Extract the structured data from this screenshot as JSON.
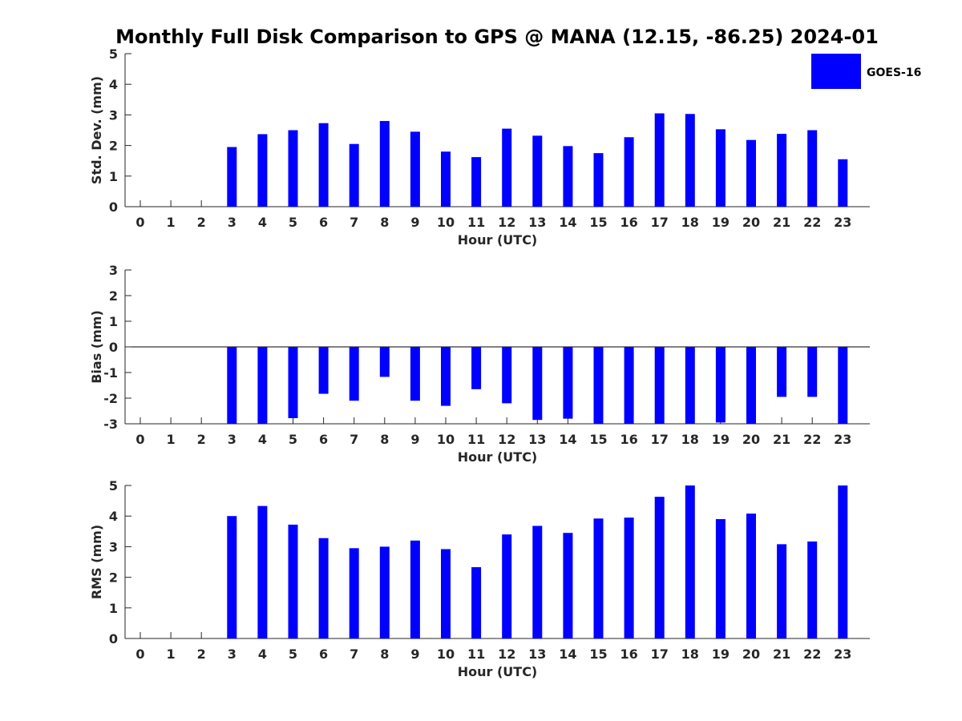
{
  "title": "Monthly Full Disk Comparison to GPS @ MANA (12.15, -86.25) 2024-01",
  "legend": {
    "label": "GOES-16",
    "color": "#0000ff",
    "placement": "top-right"
  },
  "colors": {
    "bar": "#0000ff",
    "axis": "#262626"
  },
  "chart_data": [
    {
      "type": "bar",
      "ylabel": "Std. Dev. (mm)",
      "xlabel": "Hour (UTC)",
      "categories": [
        "0",
        "1",
        "2",
        "3",
        "4",
        "5",
        "6",
        "7",
        "8",
        "9",
        "10",
        "11",
        "12",
        "13",
        "14",
        "15",
        "16",
        "17",
        "18",
        "19",
        "20",
        "21",
        "22",
        "23"
      ],
      "ylim": [
        0,
        5
      ],
      "yticks": [
        "0",
        "1",
        "2",
        "3",
        "4",
        "5"
      ],
      "series": [
        {
          "name": "GOES-16",
          "values": [
            null,
            null,
            null,
            1.95,
            2.37,
            2.5,
            2.73,
            2.05,
            2.8,
            2.45,
            1.8,
            1.62,
            2.55,
            2.32,
            1.98,
            1.75,
            2.27,
            3.05,
            3.03,
            2.53,
            2.18,
            2.38,
            2.5,
            1.55
          ]
        }
      ]
    },
    {
      "type": "bar",
      "ylabel": "Bias (mm)",
      "xlabel": "Hour (UTC)",
      "categories": [
        "0",
        "1",
        "2",
        "3",
        "4",
        "5",
        "6",
        "7",
        "8",
        "9",
        "10",
        "11",
        "12",
        "13",
        "14",
        "15",
        "16",
        "17",
        "18",
        "19",
        "20",
        "21",
        "22",
        "23"
      ],
      "ylim": [
        -3,
        3
      ],
      "yticks": [
        "-3",
        "-2",
        "-1",
        "0",
        "1",
        "2",
        "3"
      ],
      "series": [
        {
          "name": "GOES-16",
          "values": [
            null,
            null,
            null,
            -3.0,
            -3.0,
            -2.78,
            -1.83,
            -2.1,
            -1.17,
            -2.1,
            -2.3,
            -1.65,
            -2.2,
            -2.85,
            -2.8,
            -3.0,
            -3.0,
            -3.0,
            -3.0,
            -2.95,
            -3.0,
            -1.95,
            -1.95,
            -3.0
          ]
        }
      ]
    },
    {
      "type": "bar",
      "ylabel": "RMS (mm)",
      "xlabel": "Hour (UTC)",
      "categories": [
        "0",
        "1",
        "2",
        "3",
        "4",
        "5",
        "6",
        "7",
        "8",
        "9",
        "10",
        "11",
        "12",
        "13",
        "14",
        "15",
        "16",
        "17",
        "18",
        "19",
        "20",
        "21",
        "22",
        "23"
      ],
      "ylim": [
        0,
        5
      ],
      "yticks": [
        "0",
        "1",
        "2",
        "3",
        "4",
        "5"
      ],
      "series": [
        {
          "name": "GOES-16",
          "values": [
            null,
            null,
            null,
            4.0,
            4.33,
            3.72,
            3.28,
            2.95,
            3.0,
            3.2,
            2.92,
            2.33,
            3.4,
            3.68,
            3.45,
            3.92,
            3.95,
            4.63,
            5.0,
            3.9,
            4.08,
            3.08,
            3.17,
            5.0
          ]
        }
      ]
    }
  ]
}
